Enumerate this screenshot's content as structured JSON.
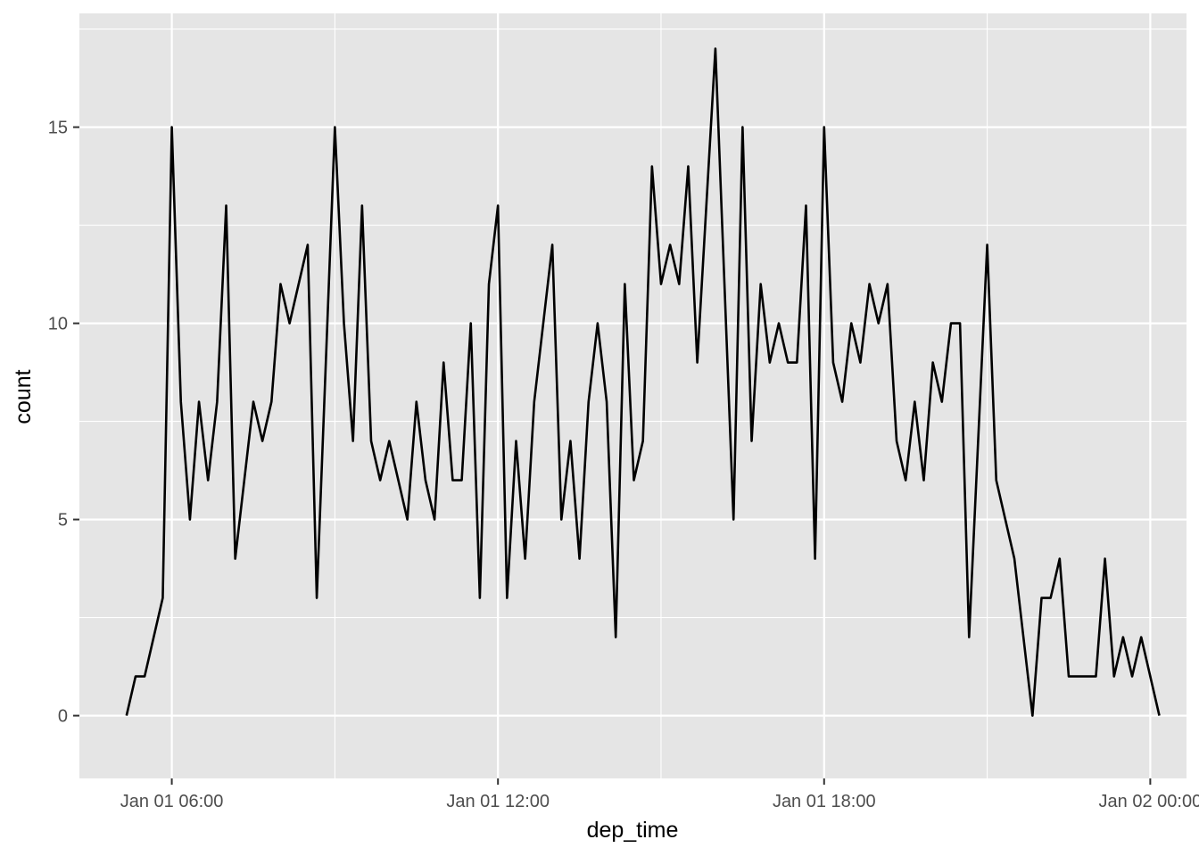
{
  "chart_data": {
    "type": "line",
    "title": "",
    "xlabel": "dep_time",
    "ylabel": "count",
    "x_axis_type": "datetime",
    "x_interval_minutes": 10,
    "x_start": "Jan 01 05:10",
    "x_end": "Jan 02 00:10",
    "xlim": [
      "Jan 01 04:18",
      "Jan 02 00:40"
    ],
    "ylim": [
      -1.6,
      17.9
    ],
    "x_ticks": [
      {
        "label": "Jan 01 06:00",
        "minutes": 360
      },
      {
        "label": "Jan 01 12:00",
        "minutes": 720
      },
      {
        "label": "Jan 01 18:00",
        "minutes": 1080
      },
      {
        "label": "Jan 02 00:00",
        "minutes": 1440
      }
    ],
    "y_ticks": [
      0,
      5,
      10,
      15
    ],
    "grid": true,
    "legend": "none",
    "series": [
      {
        "color": "#000000",
        "values": [
          0,
          1,
          1,
          2,
          3,
          15,
          8,
          5,
          8,
          6,
          8,
          13,
          4,
          6,
          8,
          7,
          8,
          11,
          10,
          11,
          12,
          3,
          9,
          15,
          10,
          7,
          13,
          7,
          6,
          7,
          6,
          5,
          8,
          6,
          5,
          9,
          6,
          6,
          10,
          3,
          11,
          13,
          3,
          7,
          4,
          8,
          10,
          12,
          5,
          7,
          4,
          8,
          10,
          8,
          2,
          11,
          6,
          7,
          14,
          11,
          12,
          11,
          14,
          9,
          13,
          17,
          11,
          5,
          15,
          7,
          11,
          9,
          10,
          9,
          9,
          13,
          4,
          15,
          9,
          8,
          10,
          9,
          11,
          10,
          11,
          7,
          6,
          8,
          6,
          9,
          8,
          10,
          10,
          2,
          7,
          12,
          6,
          5,
          4,
          2,
          0,
          3,
          3,
          4,
          1,
          1,
          1,
          1,
          4,
          1,
          2,
          1,
          2,
          1,
          0
        ]
      }
    ]
  },
  "colors": {
    "panel_background": "#e5e5e5",
    "grid_major": "#ffffff",
    "line": "#000000",
    "tick_text": "#4d4d4d",
    "axis_tick": "#333333"
  }
}
